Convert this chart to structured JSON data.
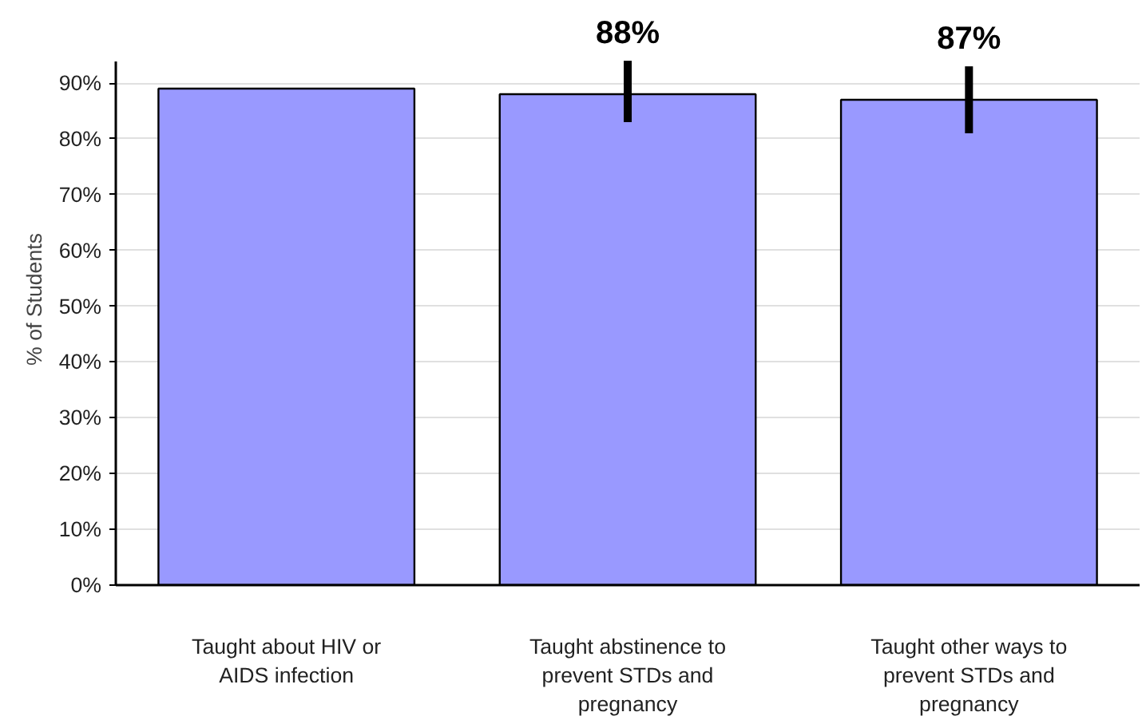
{
  "chart_data": {
    "type": "bar",
    "ylabel": "% of Students",
    "categories": [
      "Taught about HIV or AIDS infection",
      "Taught abstinence to prevent STDs and pregnancy",
      "Taught other ways to prevent STDs and pregnancy"
    ],
    "values": [
      89,
      88,
      87
    ],
    "value_labels": [
      null,
      "88%",
      "87%"
    ],
    "errors": [
      null,
      [
        83,
        94
      ],
      [
        81,
        93
      ]
    ],
    "color": "#9999ff",
    "ylim": [
      0,
      94
    ],
    "yticks": [
      {
        "value": 0,
        "label": "0%"
      },
      {
        "value": 10,
        "label": "10%"
      },
      {
        "value": 20,
        "label": "20%"
      },
      {
        "value": 30,
        "label": "30%"
      },
      {
        "value": 40,
        "label": "40%"
      },
      {
        "value": 50,
        "label": "50%"
      },
      {
        "value": 60,
        "label": "60%"
      },
      {
        "value": 70,
        "label": "70%"
      },
      {
        "value": 80,
        "label": "80%"
      },
      {
        "value": 90,
        "label": "90%"
      }
    ],
    "grid": "y"
  }
}
